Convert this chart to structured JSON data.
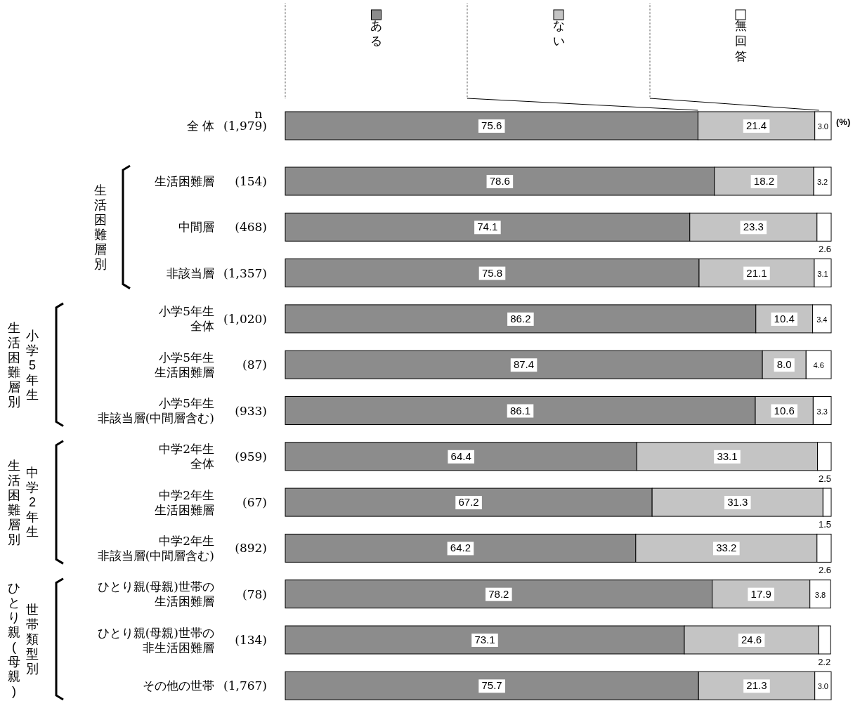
{
  "chart_data": {
    "type": "bar",
    "orientation": "horizontal",
    "stacked": true,
    "legend": "top",
    "categories": [
      "全 体",
      "生活困難層",
      "中間層",
      "非該当層",
      "小学5年生全体",
      "小学5年生生活困難層",
      "小学5年生非該当層(中間層含む)",
      "中学2年生全体",
      "中学2年生生活困難層",
      "中学2年生非該当層(中間層含む)",
      "ひとり親(母親)世帯の生活困難層",
      "ひとり親(母親)世帯の非生活困難層",
      "その他の世帯"
    ],
    "y2_categories": [
      "(1,979)",
      "(154)",
      "(468)",
      "(1,357)",
      "(1,020)",
      "(87)",
      "(933)",
      "(959)",
      "(67)",
      "(892)",
      "(78)",
      "(134)",
      "(1,767)"
    ],
    "series": [
      {
        "name": "ある",
        "color": "#8c8c8c",
        "values": [
          75.6,
          78.6,
          74.1,
          75.8,
          86.2,
          87.4,
          86.1,
          64.4,
          67.2,
          64.2,
          78.2,
          73.1,
          75.7
        ],
        "value_labels": [
          "75.6",
          "78.6",
          "74.1",
          "75.8",
          "86.2",
          "87.4",
          "86.1",
          "64.4",
          "67.2",
          "64.2",
          "78.2",
          "73.1",
          "75.7"
        ]
      },
      {
        "name": "ない",
        "color": "#c4c4c4",
        "values": [
          21.4,
          18.2,
          23.3,
          21.1,
          10.4,
          8.0,
          10.6,
          33.1,
          31.3,
          33.2,
          17.9,
          24.6,
          21.3
        ],
        "value_labels": [
          "21.4",
          "18.2",
          "23.3",
          "21.1",
          "10.4",
          "8.0",
          "10.6",
          "33.1",
          "31.3",
          "33.2",
          "17.9",
          "24.6",
          "21.3"
        ]
      },
      {
        "name": "無回答",
        "color": "#ffffff",
        "values": [
          3.0,
          3.2,
          2.6,
          3.1,
          3.4,
          4.6,
          3.3,
          2.5,
          1.5,
          2.6,
          3.8,
          2.2,
          3.0
        ],
        "value_labels": [
          "3.0",
          "3.2",
          "2.6",
          "3.1",
          "3.4",
          "4.6",
          "3.3",
          "2.5",
          "1.5",
          "2.6",
          "3.8",
          "2.2",
          "3.0"
        ]
      }
    ],
    "annotations": [
      "n",
      "(%)",
      "生活困難層別",
      "小学5年生",
      "生活困難層別",
      "中学2年生",
      "生活困難層別",
      "世帯類型別",
      "ひとり親(母親)"
    ]
  }
}
